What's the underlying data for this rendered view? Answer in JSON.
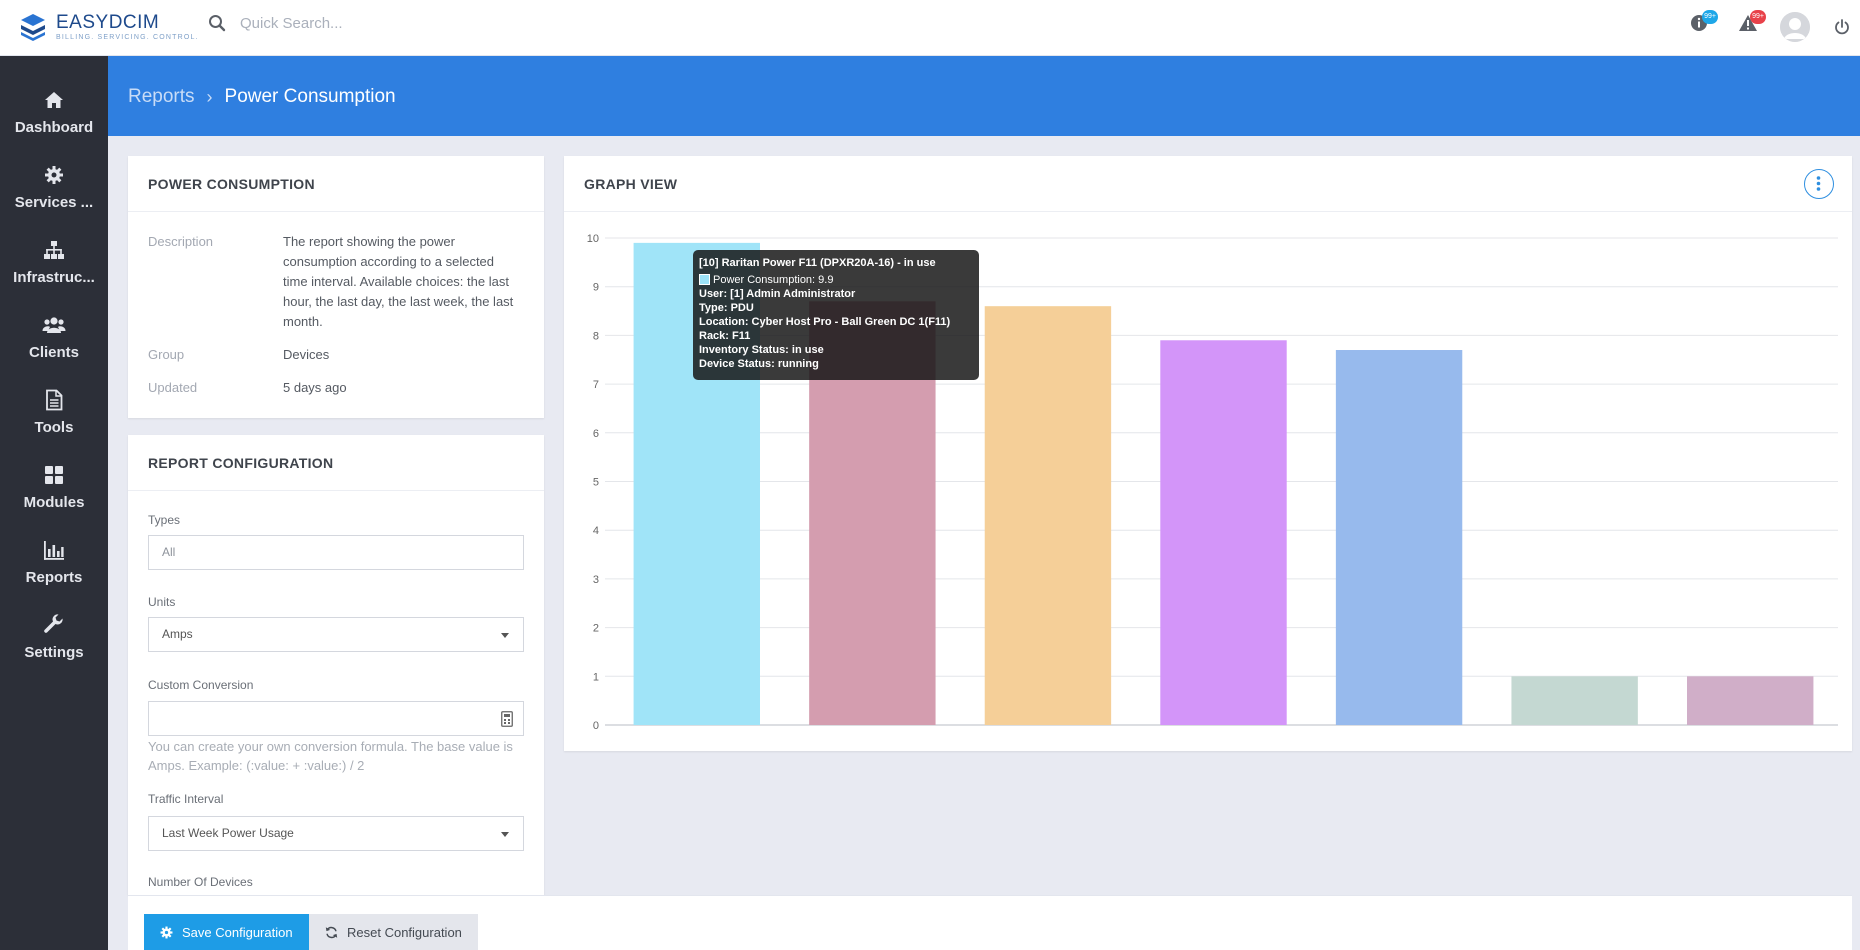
{
  "app": {
    "logo_name": "EASYDCIM",
    "logo_tag": "BILLING. SERVICING. CONTROL.",
    "search_placeholder": "Quick Search...",
    "info_badge": "99+",
    "alert_badge": "99+",
    "brand_color": "#2f7fe0",
    "sidebar_color": "#2c2f38"
  },
  "sidebar": {
    "items": [
      {
        "label": "Dashboard",
        "icon": "home-icon"
      },
      {
        "label": "Services ...",
        "icon": "gear-icon"
      },
      {
        "label": "Infrastruc...",
        "icon": "sitemap-icon"
      },
      {
        "label": "Clients",
        "icon": "users-icon"
      },
      {
        "label": "Tools",
        "icon": "file-icon"
      },
      {
        "label": "Modules",
        "icon": "grid-icon"
      },
      {
        "label": "Reports",
        "icon": "bar-chart-icon"
      },
      {
        "label": "Settings",
        "icon": "wrench-icon"
      }
    ]
  },
  "breadcrumb": {
    "parent": "Reports",
    "current": "Power Consumption"
  },
  "summary": {
    "title": "POWER CONSUMPTION",
    "description_label": "Description",
    "description_lines": [
      "The report showing the power",
      "consumption according to a selected",
      "time interval. Available choices: the last",
      "hour, the last day, the last week, the last",
      "month."
    ],
    "group_label": "Group",
    "group_value": "Devices",
    "updated_label": "Updated",
    "updated_value": "5 days ago"
  },
  "config": {
    "title": "REPORT CONFIGURATION",
    "types_label": "Types",
    "types_placeholder": "All",
    "units_label": "Units",
    "units_value": "Amps",
    "custom_label": "Custom Conversion",
    "custom_value": "",
    "custom_hint_lines": [
      "You can create your own conversion formula. The base value is",
      "Amps. Example: (:value: + :value:) / 2"
    ],
    "traffic_label": "Traffic Interval",
    "traffic_value": "Last Week Power Usage",
    "devices_label": "Number Of Devices"
  },
  "actions": {
    "save": "Save Configuration",
    "reset": "Reset Configuration"
  },
  "graph": {
    "title": "GRAPH VIEW",
    "tooltip": {
      "title": "[10] Raritan Power F11 (DPXR20A-16) - in use",
      "series_line": "Power Consumption: 9.9",
      "lines": [
        "User: [1] Admin Administrator",
        "Type: PDU",
        "Location: Cyber Host Pro - Ball Green DC 1(F11)",
        "Rack: F11",
        "Inventory Status: in use",
        "Device Status: running"
      ]
    }
  },
  "chart_data": {
    "type": "bar",
    "categories": [
      "",
      "",
      "",
      "",
      "",
      "",
      ""
    ],
    "values": [
      9.9,
      8.7,
      8.6,
      7.9,
      7.7,
      1,
      1
    ],
    "colors": [
      "#a0e4f8",
      "#d49daf",
      "#f5cf98",
      "#d395f9",
      "#97baed",
      "#c4d8d2",
      "#d0aec8"
    ],
    "ylim": [
      0,
      10
    ],
    "yticks": [
      "0",
      "1",
      "2",
      "3",
      "4",
      "5",
      "6",
      "7",
      "8",
      "9",
      "10"
    ],
    "grid": true,
    "title": "",
    "xlabel": "",
    "ylabel": ""
  }
}
